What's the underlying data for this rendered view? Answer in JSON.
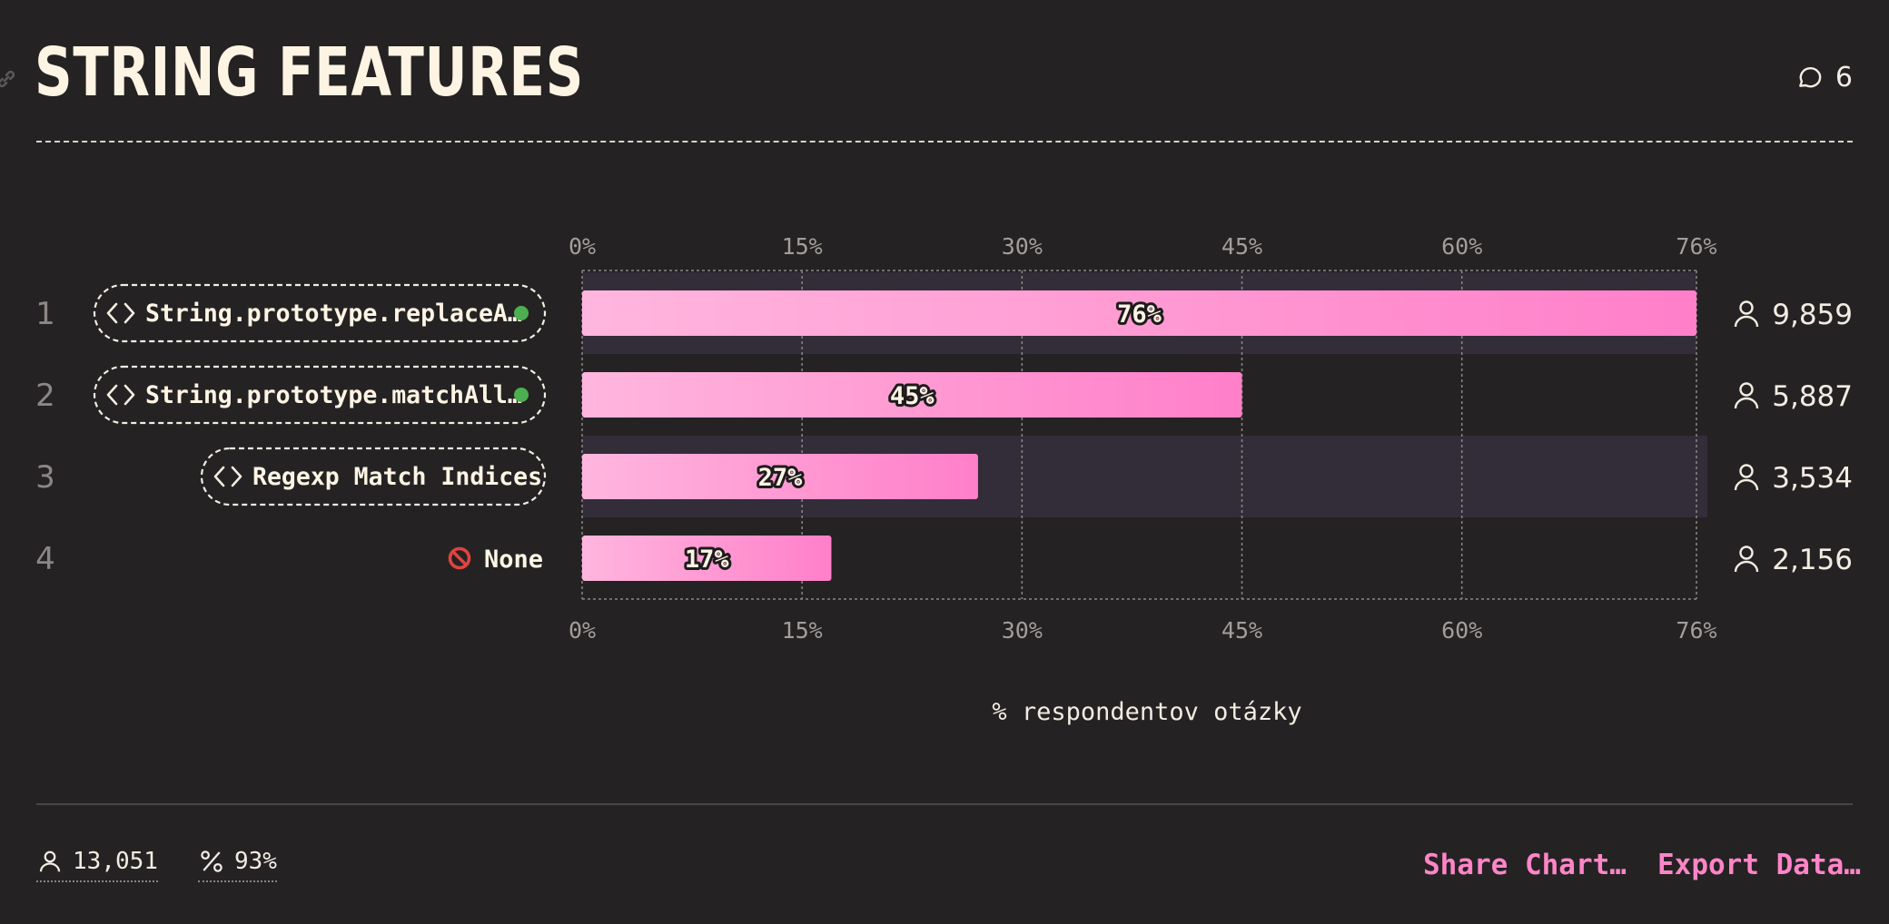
{
  "header": {
    "title": "STRING FEATURES",
    "comments_count": "6"
  },
  "colors": {
    "background": "#252223",
    "bar_start": "#ffb6de",
    "bar_end": "#ff7fc9",
    "accent": "#ff85c8",
    "available_dot": "#4caf50"
  },
  "chart_data": {
    "type": "bar",
    "orientation": "horizontal",
    "categories": [
      "String.prototype.replaceA…",
      "String.prototype.matchAll…",
      "Regexp Match Indices",
      "None"
    ],
    "ranks": [
      "1",
      "2",
      "3",
      "4"
    ],
    "values": [
      76,
      45,
      27,
      17
    ],
    "value_labels": [
      "76%",
      "45%",
      "27%",
      "17%"
    ],
    "counts": [
      "9,859",
      "5,887",
      "3,534",
      "2,156"
    ],
    "xlim": [
      0,
      76
    ],
    "xticks": [
      0,
      15,
      30,
      45,
      60,
      76
    ],
    "xtick_labels": [
      "0%",
      "15%",
      "30%",
      "45%",
      "60%",
      "76%"
    ],
    "xlabel": "% respondentov otázky",
    "label_style": [
      "code",
      "code",
      "code",
      "none"
    ],
    "available_dot": [
      true,
      true,
      false,
      false
    ],
    "row_highlight": [
      true,
      false,
      true,
      false
    ],
    "grid": true
  },
  "footer": {
    "total_respondents": "13,051",
    "completion": "93%",
    "share_label": "Share Chart…",
    "export_label": "Export Data…"
  }
}
